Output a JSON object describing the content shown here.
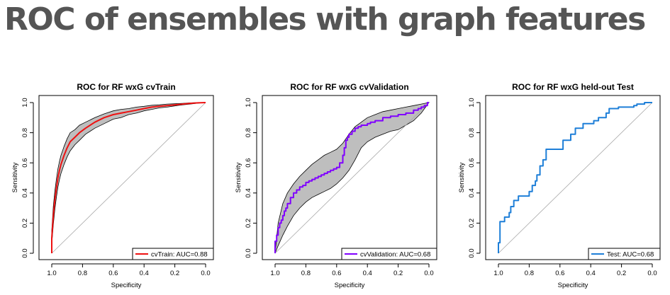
{
  "page": {
    "title": "ROC of ensembles with graph features"
  },
  "chart_data": [
    {
      "type": "line",
      "title": "ROC for RF wxG cvTrain",
      "xlabel": "Specificity",
      "ylabel": "Sensitivity",
      "xlim": [
        1.0,
        0.0
      ],
      "ylim": [
        0.0,
        1.0
      ],
      "x_reversed": true,
      "xticks": [
        "1.0",
        "0.8",
        "0.6",
        "0.4",
        "0.2",
        "0.0"
      ],
      "yticks": [
        "0.0",
        "0.2",
        "0.4",
        "0.6",
        "0.8",
        "1.0"
      ],
      "grid": false,
      "legend_position": "bottom-right",
      "diagonal": true,
      "series": [
        {
          "name": "cvTrain: AUC=0.88",
          "color": "#ee1111",
          "step": false,
          "specificity": [
            1.0,
            1.0,
            0.99,
            0.98,
            0.97,
            0.96,
            0.95,
            0.94,
            0.93,
            0.92,
            0.9,
            0.88,
            0.85,
            0.82,
            0.78,
            0.72,
            0.66,
            0.6,
            0.55,
            0.5,
            0.45,
            0.4,
            0.35,
            0.3,
            0.25,
            0.2,
            0.15,
            0.1,
            0.05,
            0.0
          ],
          "sensitivity": [
            0.0,
            0.1,
            0.25,
            0.35,
            0.43,
            0.5,
            0.55,
            0.59,
            0.62,
            0.65,
            0.7,
            0.74,
            0.77,
            0.8,
            0.83,
            0.87,
            0.9,
            0.92,
            0.93,
            0.94,
            0.95,
            0.96,
            0.97,
            0.975,
            0.98,
            0.985,
            0.99,
            0.995,
            0.998,
            1.0
          ]
        }
      ],
      "ci_band": {
        "color": "#bebebe",
        "specificity": [
          1.0,
          1.0,
          0.99,
          0.98,
          0.97,
          0.96,
          0.95,
          0.94,
          0.93,
          0.92,
          0.9,
          0.88,
          0.85,
          0.82,
          0.78,
          0.72,
          0.66,
          0.6,
          0.55,
          0.5,
          0.45,
          0.4,
          0.35,
          0.3,
          0.25,
          0.2,
          0.15,
          0.1,
          0.05,
          0.0
        ],
        "lower": [
          0.0,
          0.06,
          0.19,
          0.29,
          0.37,
          0.44,
          0.49,
          0.53,
          0.56,
          0.59,
          0.64,
          0.68,
          0.72,
          0.75,
          0.79,
          0.83,
          0.86,
          0.89,
          0.9,
          0.92,
          0.93,
          0.945,
          0.955,
          0.965,
          0.97,
          0.978,
          0.985,
          0.99,
          0.996,
          1.0
        ],
        "upper": [
          0.0,
          0.15,
          0.31,
          0.41,
          0.49,
          0.56,
          0.61,
          0.65,
          0.68,
          0.71,
          0.76,
          0.8,
          0.82,
          0.85,
          0.87,
          0.9,
          0.925,
          0.945,
          0.955,
          0.96,
          0.97,
          0.975,
          0.982,
          0.985,
          0.99,
          0.992,
          0.995,
          0.998,
          1.0,
          1.0
        ]
      }
    },
    {
      "type": "line",
      "title": "ROC for RF wxG cvValidation",
      "xlabel": "Specificity",
      "ylabel": "Sensitivity",
      "xlim": [
        1.0,
        0.0
      ],
      "ylim": [
        0.0,
        1.0
      ],
      "x_reversed": true,
      "xticks": [
        "1.0",
        "0.8",
        "0.6",
        "0.4",
        "0.2",
        "0.0"
      ],
      "yticks": [
        "0.0",
        "0.2",
        "0.4",
        "0.6",
        "0.8",
        "1.0"
      ],
      "grid": false,
      "legend_position": "bottom-right",
      "diagonal": true,
      "series": [
        {
          "name": "cvValidation: AUC=0.68",
          "color": "#8000ff",
          "step": true,
          "specificity": [
            1.0,
            0.99,
            0.98,
            0.97,
            0.96,
            0.95,
            0.94,
            0.93,
            0.92,
            0.9,
            0.88,
            0.86,
            0.84,
            0.82,
            0.8,
            0.78,
            0.76,
            0.74,
            0.72,
            0.7,
            0.68,
            0.66,
            0.64,
            0.62,
            0.6,
            0.58,
            0.56,
            0.55,
            0.54,
            0.53,
            0.52,
            0.5,
            0.48,
            0.46,
            0.44,
            0.42,
            0.4,
            0.38,
            0.35,
            0.3,
            0.25,
            0.2,
            0.15,
            0.1,
            0.07,
            0.05,
            0.03,
            0.01,
            0.0
          ],
          "sensitivity": [
            0.0,
            0.08,
            0.12,
            0.17,
            0.2,
            0.22,
            0.25,
            0.28,
            0.3,
            0.33,
            0.37,
            0.4,
            0.42,
            0.44,
            0.45,
            0.47,
            0.48,
            0.49,
            0.5,
            0.51,
            0.52,
            0.53,
            0.54,
            0.55,
            0.56,
            0.57,
            0.6,
            0.65,
            0.7,
            0.75,
            0.77,
            0.79,
            0.81,
            0.83,
            0.84,
            0.85,
            0.85,
            0.86,
            0.87,
            0.88,
            0.9,
            0.91,
            0.92,
            0.93,
            0.95,
            0.96,
            0.97,
            0.98,
            1.0
          ]
        }
      ],
      "ci_band": {
        "color": "#bebebe",
        "specificity": [
          1.0,
          0.98,
          0.95,
          0.92,
          0.88,
          0.84,
          0.8,
          0.76,
          0.72,
          0.68,
          0.64,
          0.6,
          0.56,
          0.52,
          0.48,
          0.44,
          0.4,
          0.35,
          0.3,
          0.25,
          0.2,
          0.15,
          0.1,
          0.05,
          0.0
        ],
        "lower": [
          0.0,
          0.05,
          0.12,
          0.18,
          0.25,
          0.3,
          0.34,
          0.37,
          0.39,
          0.41,
          0.43,
          0.46,
          0.5,
          0.55,
          0.62,
          0.7,
          0.74,
          0.77,
          0.79,
          0.81,
          0.82,
          0.85,
          0.88,
          0.93,
          1.0
        ],
        "upper": [
          0.0,
          0.2,
          0.33,
          0.4,
          0.46,
          0.51,
          0.55,
          0.59,
          0.62,
          0.65,
          0.67,
          0.69,
          0.73,
          0.79,
          0.84,
          0.87,
          0.9,
          0.92,
          0.94,
          0.95,
          0.96,
          0.97,
          0.98,
          0.99,
          1.0
        ]
      }
    },
    {
      "type": "line",
      "title": "ROC for RF wxG held-out Test",
      "xlabel": "Specificity",
      "ylabel": "Sensitivity",
      "xlim": [
        1.0,
        0.0
      ],
      "ylim": [
        0.0,
        1.0
      ],
      "x_reversed": true,
      "xticks": [
        "1.0",
        "0.8",
        "0.6",
        "0.4",
        "0.2",
        "0.0"
      ],
      "yticks": [
        "0.0",
        "0.2",
        "0.4",
        "0.6",
        "0.8",
        "1.0"
      ],
      "grid": false,
      "legend_position": "bottom-right",
      "diagonal": true,
      "series": [
        {
          "name": "Test: AUC=0.68",
          "color": "#1e7fd8",
          "step": true,
          "specificity": [
            1.0,
            0.99,
            0.96,
            0.93,
            0.92,
            0.9,
            0.87,
            0.8,
            0.78,
            0.76,
            0.75,
            0.73,
            0.71,
            0.69,
            0.63,
            0.58,
            0.53,
            0.5,
            0.48,
            0.45,
            0.38,
            0.35,
            0.3,
            0.28,
            0.22,
            0.12,
            0.1,
            0.05,
            0.02,
            0.0
          ],
          "sensitivity": [
            0.0,
            0.07,
            0.21,
            0.24,
            0.27,
            0.31,
            0.35,
            0.38,
            0.41,
            0.45,
            0.48,
            0.52,
            0.58,
            0.62,
            0.69,
            0.69,
            0.75,
            0.79,
            0.83,
            0.83,
            0.86,
            0.88,
            0.9,
            0.93,
            0.96,
            0.97,
            0.98,
            0.99,
            1.0,
            1.0
          ]
        }
      ]
    }
  ]
}
